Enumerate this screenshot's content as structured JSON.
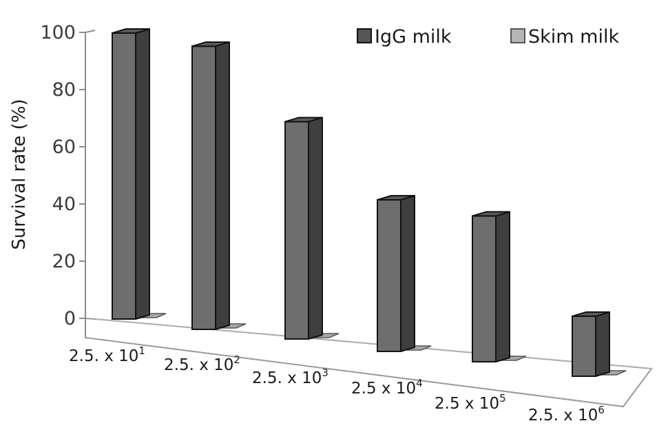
{
  "chart_data": {
    "type": "bar",
    "style": "3d-clustered",
    "ylabel": "Survival rate (%)",
    "ylim": [
      0,
      100
    ],
    "yticks": [
      0,
      20,
      40,
      60,
      80,
      100
    ],
    "categories": [
      {
        "base": "2.5. x 10",
        "exp": "1"
      },
      {
        "base": "2.5. x 10",
        "exp": "2"
      },
      {
        "base": "2.5. x 10",
        "exp": "3"
      },
      {
        "base": "2.5 x 10",
        "exp": "4"
      },
      {
        "base": "2.5 x 10",
        "exp": "5"
      },
      {
        "base": "2.5. x 10",
        "exp": "6"
      }
    ],
    "series": [
      {
        "name": "IgG milk",
        "values": [
          100,
          99,
          76,
          53,
          51,
          21
        ],
        "color": "#6e6e6e"
      },
      {
        "name": "Skim milk",
        "values": [
          0,
          0,
          0,
          0,
          0,
          0
        ],
        "color": "#a9a9a9"
      }
    ],
    "legend_position": "top-right",
    "grid": false
  }
}
